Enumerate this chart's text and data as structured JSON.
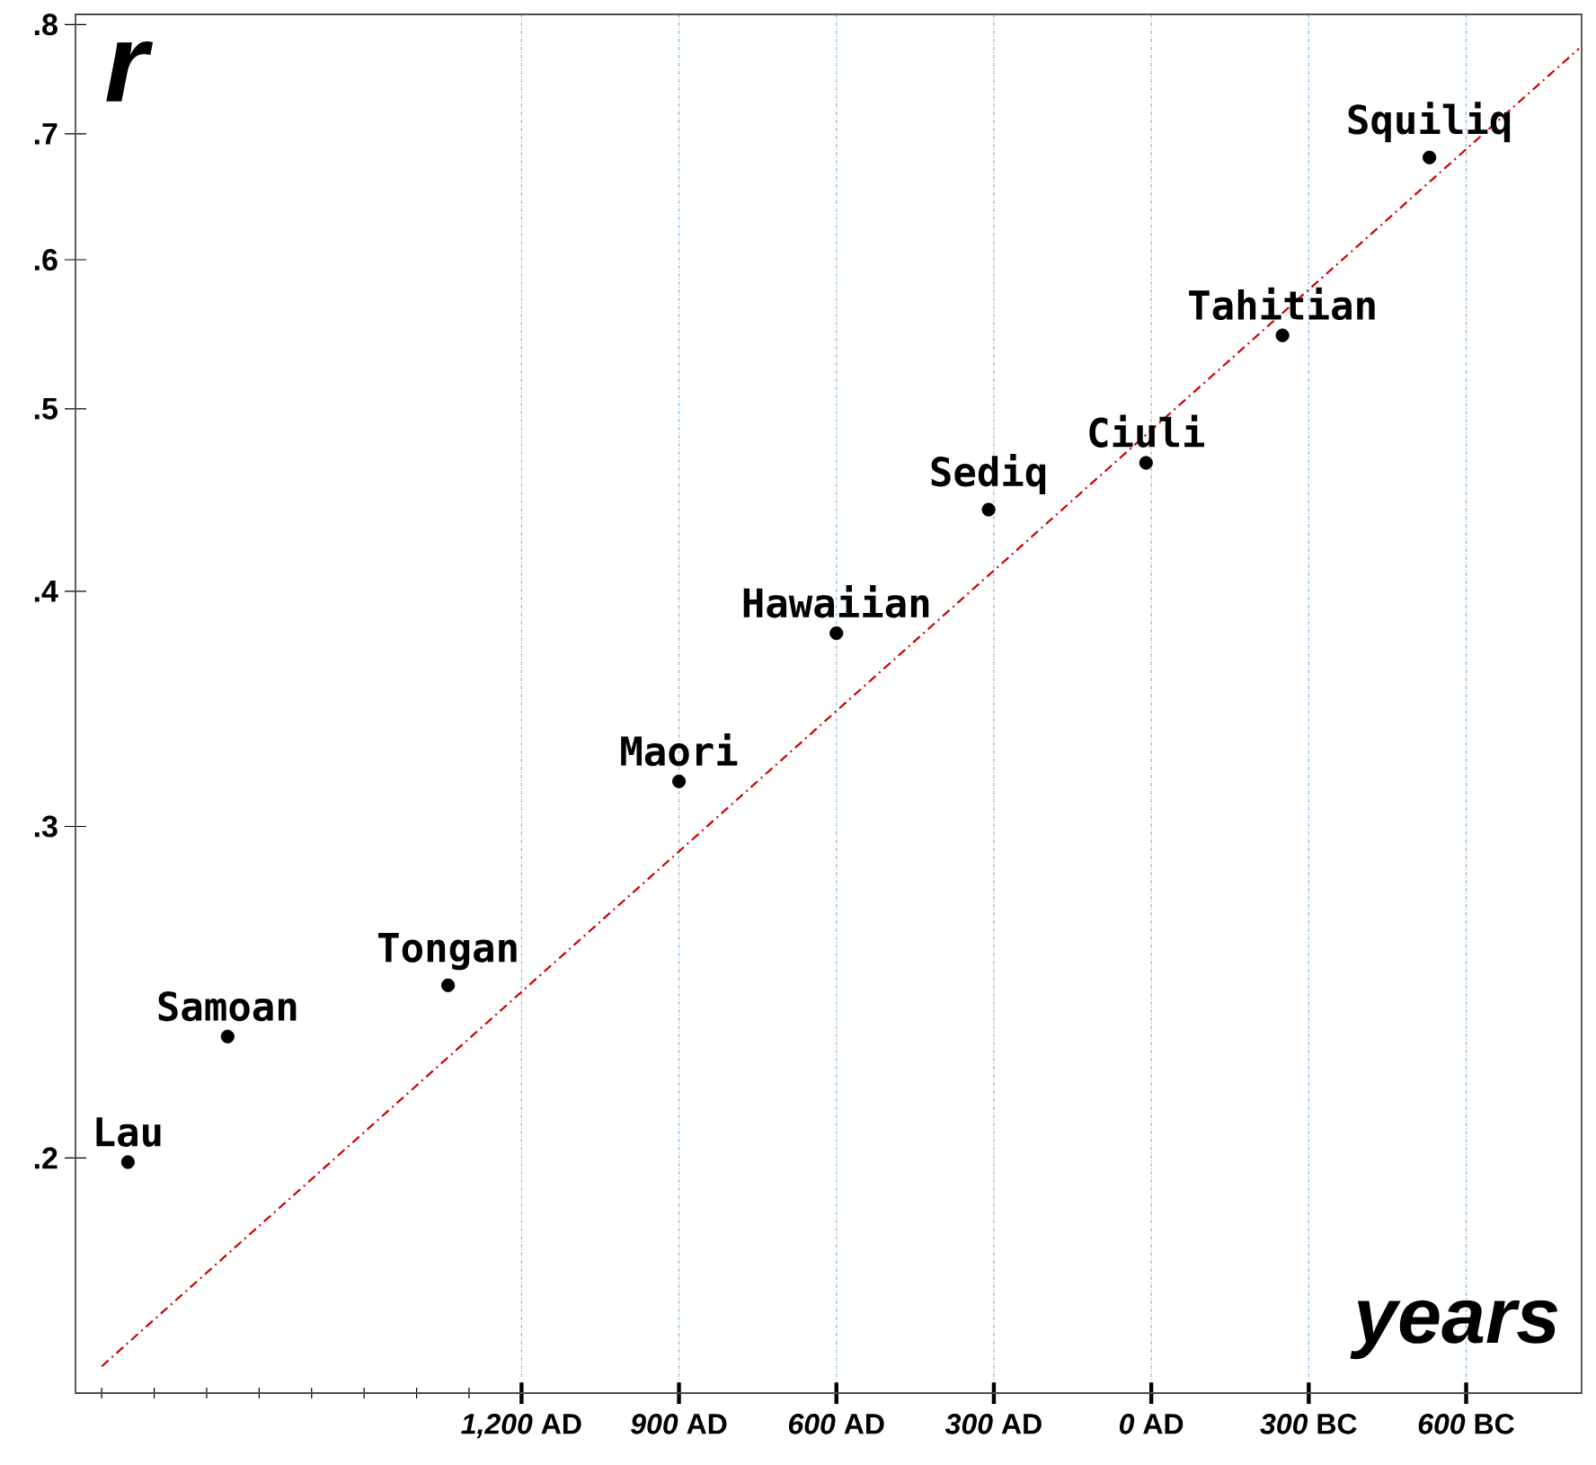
{
  "chart_data": {
    "type": "scatter",
    "xlabel": "years",
    "ylabel": "r",
    "x": [
      1950,
      1760,
      1340,
      900,
      600,
      310,
      10,
      -250,
      -530
    ],
    "series": [
      {
        "color": "#000000",
        "marker": "circle",
        "values": [
          0.199,
          0.232,
          0.247,
          0.317,
          0.38,
          0.442,
          0.468,
          0.547,
          0.68
        ]
      },
      {
        "type": "line",
        "color": "#cc0000",
        "line_style": "dashdot",
        "marker": "none",
        "x": [
          2000,
          -815
        ],
        "values": [
          0.155,
          0.777
        ]
      }
    ],
    "log": "y",
    "grid": "x",
    "xlim": [
      2050,
      -820
    ],
    "ylim": [
      0.15,
      0.81
    ],
    "xticks": [
      {
        "value": 2000,
        "label": null
      },
      {
        "value": 1900,
        "label": null
      },
      {
        "value": 1800,
        "label": null
      },
      {
        "value": 1700,
        "label": null
      },
      {
        "value": 1600,
        "label": null
      },
      {
        "value": 1500,
        "label": null
      },
      {
        "value": 1400,
        "label": null
      },
      {
        "value": 1300,
        "label": null
      },
      {
        "value": 1200,
        "label": "*1,200* AD"
      },
      {
        "value": 900,
        "label": "*900* AD"
      },
      {
        "value": 600,
        "label": "*600* AD"
      },
      {
        "value": 300,
        "label": "*300* AD"
      },
      {
        "value": 0,
        "label": "*0* AD"
      },
      {
        "value": -300,
        "label": "*300* BC"
      },
      {
        "value": -600,
        "label": "*600* BC"
      }
    ],
    "yticks": [
      {
        "value": 0.2,
        "label": ".2"
      },
      {
        "value": 0.3,
        "label": ".3"
      },
      {
        "value": 0.4,
        "label": ".4"
      },
      {
        "value": 0.5,
        "label": ".5"
      },
      {
        "value": 0.6,
        "label": ".6"
      },
      {
        "value": 0.7,
        "label": ".7"
      },
      {
        "value": 0.8,
        "label": ".8"
      }
    ],
    "annotations": [
      {
        "text": "Lau",
        "x": 1950,
        "y": 0.199
      },
      {
        "text": "Samoan",
        "x": 1760,
        "y": 0.232
      },
      {
        "text": "Tongan",
        "x": 1340,
        "y": 0.247
      },
      {
        "text": "Maori",
        "x": 900,
        "y": 0.317
      },
      {
        "text": "Hawaiian",
        "x": 600,
        "y": 0.38
      },
      {
        "text": "Sediq",
        "x": 310,
        "y": 0.442
      },
      {
        "text": "Ciuli",
        "x": 10,
        "y": 0.468
      },
      {
        "text": "Tahitian",
        "x": -250,
        "y": 0.547
      },
      {
        "text": "Squiliq",
        "x": -530,
        "y": 0.68
      }
    ]
  }
}
